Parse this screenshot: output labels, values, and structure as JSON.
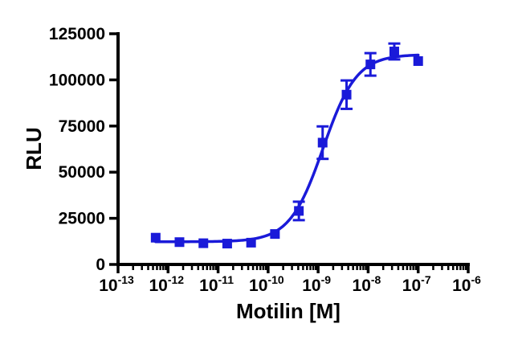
{
  "figure": {
    "background": "#ffffff",
    "axis_color": "#000000"
  },
  "chart_data": {
    "type": "scatter",
    "title": "",
    "xlabel": "Motilin [M]",
    "ylabel": "RLU",
    "x_scale": "log10",
    "xlim_log10": [
      -13,
      -6
    ],
    "ylim": [
      0,
      125000
    ],
    "grid": false,
    "legend": null,
    "y_ticks": [
      {
        "value": 0,
        "label": "0"
      },
      {
        "value": 25000,
        "label": "25000"
      },
      {
        "value": 50000,
        "label": "50000"
      },
      {
        "value": 75000,
        "label": "75000"
      },
      {
        "value": 100000,
        "label": "100000"
      },
      {
        "value": 125000,
        "label": "125000"
      }
    ],
    "x_ticks": [
      {
        "log10": -13,
        "mantissa": "10",
        "exponent": "-13"
      },
      {
        "log10": -12,
        "mantissa": "10",
        "exponent": "-12"
      },
      {
        "log10": -11,
        "mantissa": "10",
        "exponent": "-11"
      },
      {
        "log10": -10,
        "mantissa": "10",
        "exponent": "-10"
      },
      {
        "log10": -9,
        "mantissa": "10",
        "exponent": "-9"
      },
      {
        "log10": -8,
        "mantissa": "10",
        "exponent": "-8"
      },
      {
        "log10": -7,
        "mantissa": "10",
        "exponent": "-7"
      },
      {
        "log10": -6,
        "mantissa": "10",
        "exponent": "-6"
      }
    ],
    "x_minor_mantissas": [
      2,
      3,
      4,
      5,
      6,
      7,
      8,
      9
    ],
    "series": [
      {
        "name": "Motilin",
        "marker": "filled-square",
        "color": "#1a1ad9",
        "points": [
          {
            "conc_M": 5.65e-13,
            "rlu": 14500,
            "error": 0
          },
          {
            "conc_M": 1.69e-12,
            "rlu": 12100,
            "error": 0
          },
          {
            "conc_M": 5.08e-12,
            "rlu": 11500,
            "error": 0
          },
          {
            "conc_M": 1.52e-11,
            "rlu": 11300,
            "error": 0
          },
          {
            "conc_M": 4.57e-11,
            "rlu": 11800,
            "error": 0
          },
          {
            "conc_M": 1.37e-10,
            "rlu": 16500,
            "error": 0
          },
          {
            "conc_M": 4.12e-10,
            "rlu": 29000,
            "error": 5000
          },
          {
            "conc_M": 1.23e-09,
            "rlu": 66000,
            "error": 8800
          },
          {
            "conc_M": 3.7e-09,
            "rlu": 92000,
            "error": 7700
          },
          {
            "conc_M": 1.11e-08,
            "rlu": 108400,
            "error": 6100
          },
          {
            "conc_M": 3.33e-08,
            "rlu": 115400,
            "error": 4300
          },
          {
            "conc_M": 1e-07,
            "rlu": 110200,
            "error": 0
          }
        ],
        "fit_curve": {
          "model": "4PL-sigmoid",
          "bottom": 12300,
          "top": 113800,
          "log10_ec50": -8.9,
          "hill_slope": 1.3
        }
      }
    ]
  }
}
